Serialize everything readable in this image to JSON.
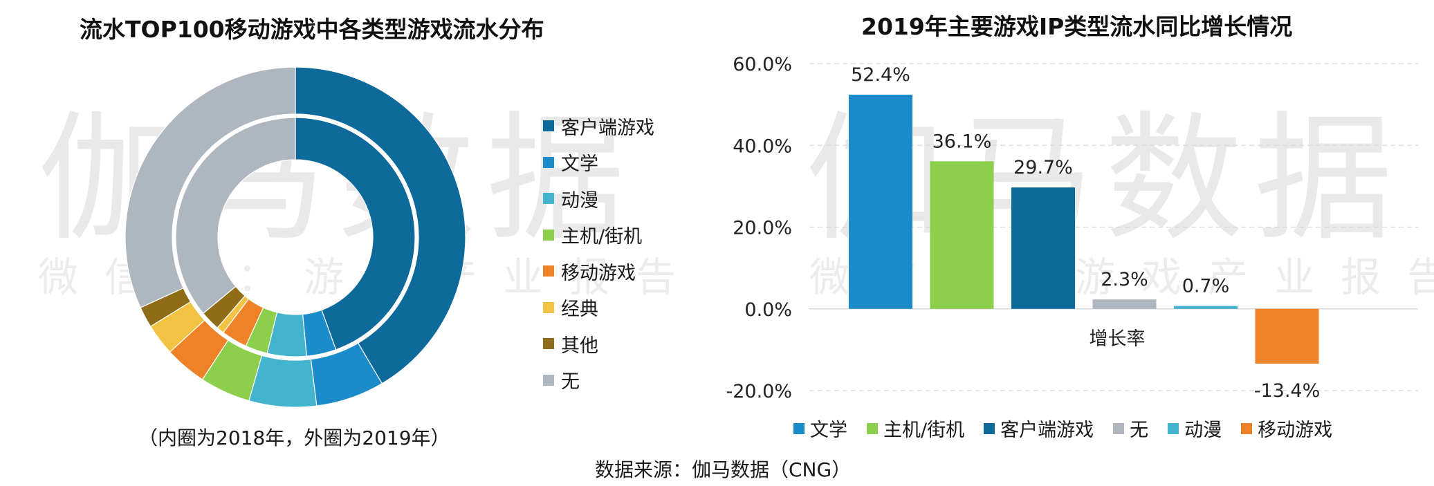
{
  "watermark": {
    "main": "伽马数据",
    "sub": "微信号：游戏产业报告"
  },
  "donut": {
    "title": "流水TOP100移动游戏中各类型游戏流水分布",
    "note": "（内圈为2018年，外圈为2019年）"
  },
  "bar": {
    "title": "2019年主要游戏IP类型流水同比增长情况"
  },
  "source": "数据来源：伽马数据（CNG）",
  "chart_data": [
    {
      "type": "pie",
      "title": "流水TOP100移动游戏中各类型游戏流水分布",
      "categories": [
        "客户端游戏",
        "文学",
        "动漫",
        "主机/街机",
        "移动游戏",
        "经典",
        "其他",
        "无"
      ],
      "colors": [
        "#0f6a9c",
        "#1b8cc9",
        "#43b4cd",
        "#8ccf4d",
        "#ee8228",
        "#f2c342",
        "#8f6c17",
        "#aeb6bf"
      ],
      "series": [
        {
          "name": "2019年",
          "values": [
            41.5,
            6.5,
            6.4,
            4.8,
            4.0,
            3.0,
            2.0,
            31.8
          ]
        },
        {
          "name": "2018年",
          "values": [
            44.5,
            4.0,
            5.3,
            3.0,
            3.5,
            1.0,
            2.7,
            36.0
          ]
        }
      ],
      "legend": "right"
    },
    {
      "type": "bar",
      "title": "2019年主要游戏IP类型流水同比增长情况",
      "xlabel": "增长率",
      "categories": [
        "文学",
        "主机/街机",
        "客户端游戏",
        "无",
        "动漫",
        "移动游戏"
      ],
      "values": [
        52.4,
        36.1,
        29.7,
        2.3,
        0.7,
        -13.4
      ],
      "labels": [
        "52.4%",
        "36.1%",
        "29.7%",
        "2.3%",
        "0.7%",
        "-13.4%"
      ],
      "colors": [
        "#1b8cc9",
        "#8ccf4d",
        "#0f6a9c",
        "#aeb6bf",
        "#43b4cd",
        "#ee8228"
      ],
      "ylim": [
        -20,
        60
      ],
      "yticks": [
        60,
        40,
        20,
        0,
        -20
      ],
      "ytick_labels": [
        "60.0%",
        "40.0%",
        "20.0%",
        "0.0%",
        "-20.0%"
      ],
      "grid": true,
      "legend": "bottom"
    }
  ]
}
